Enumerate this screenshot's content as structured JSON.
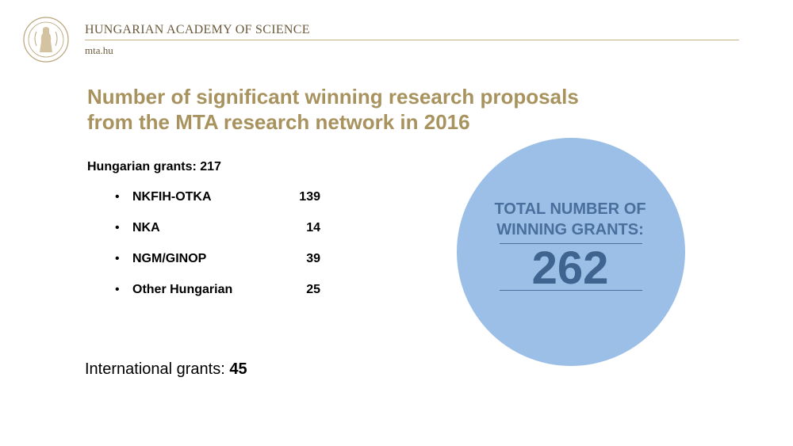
{
  "header": {
    "org_name": "HUNGARIAN ACADEMY OF SCIENCE",
    "url": "mta.hu",
    "logo_icon": "academy-seal-icon",
    "accent_color": "#a8935f"
  },
  "title": {
    "line1": "Number of significant winning research proposals",
    "line2": "from the MTA research network in 2016"
  },
  "hungarian": {
    "heading": "Hungarian grants: 217",
    "items": [
      {
        "name": "NKFIH-OTKA",
        "count": "139"
      },
      {
        "name": "NKA",
        "count": "14"
      },
      {
        "name": "NGM/GINOP",
        "count": "39"
      },
      {
        "name": "Other Hungarian",
        "count": "25"
      }
    ]
  },
  "international": {
    "label": "International grants: ",
    "value": "45"
  },
  "total": {
    "label_line1": "TOTAL NUMBER OF",
    "label_line2": "WINNING GRANTS:",
    "value": "262",
    "circle_color": "#9bbfe6"
  }
}
